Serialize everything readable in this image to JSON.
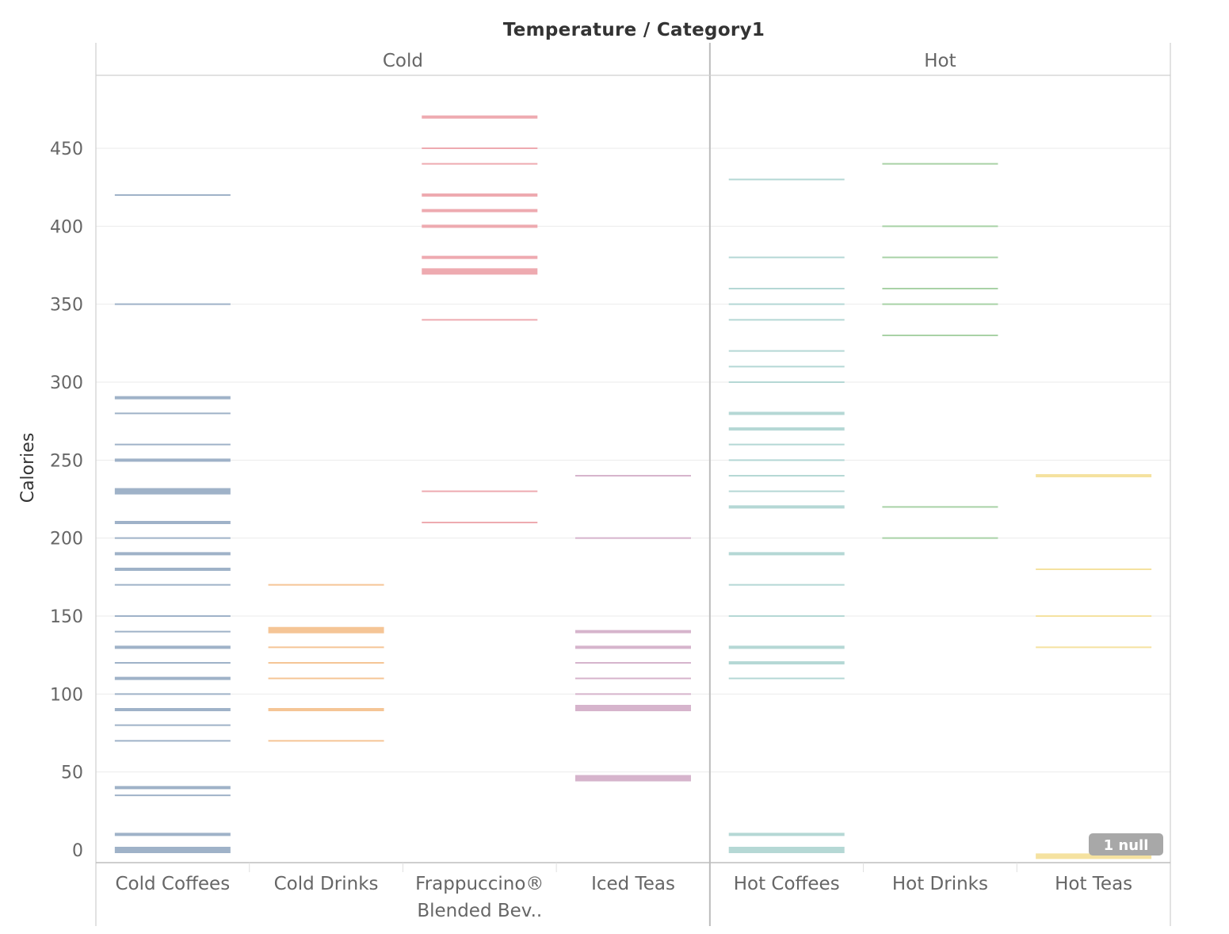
{
  "chart_data": {
    "type": "strip",
    "title": "Temperature / Category1",
    "ylabel": "Calories",
    "ylim": [
      -8,
      490
    ],
    "yticks": [
      0,
      50,
      100,
      150,
      200,
      250,
      300,
      350,
      400,
      450
    ],
    "grid": true,
    "groups": [
      {
        "name": "Cold",
        "categories": [
          "Cold Coffees",
          "Cold Drinks",
          "Frappuccino®|Blended Bev..",
          "Iced Teas"
        ]
      },
      {
        "name": "Hot",
        "categories": [
          "Hot Coffees",
          "Hot Drinks",
          "Hot Teas"
        ]
      }
    ],
    "series": [
      {
        "category": "Cold Coffees",
        "color": "#9fb2c8",
        "values": [
          [
            0,
            3
          ],
          [
            10,
            2
          ],
          [
            35,
            1
          ],
          [
            40,
            2
          ],
          [
            70,
            1
          ],
          [
            80,
            1
          ],
          [
            90,
            2
          ],
          [
            100,
            1
          ],
          [
            110,
            2
          ],
          [
            120,
            1
          ],
          [
            130,
            2
          ],
          [
            140,
            1
          ],
          [
            150,
            1
          ],
          [
            170,
            1
          ],
          [
            180,
            2
          ],
          [
            190,
            2
          ],
          [
            200,
            1
          ],
          [
            210,
            2
          ],
          [
            230,
            3
          ],
          [
            250,
            2
          ],
          [
            260,
            1
          ],
          [
            280,
            1
          ],
          [
            290,
            2
          ],
          [
            350,
            1
          ],
          [
            420,
            1
          ]
        ]
      },
      {
        "category": "Cold Drinks",
        "color": "#f5c596",
        "values": [
          [
            70,
            1
          ],
          [
            90,
            2
          ],
          [
            110,
            1
          ],
          [
            120,
            1
          ],
          [
            130,
            1
          ],
          [
            141,
            3
          ],
          [
            170,
            1
          ]
        ]
      },
      {
        "category": "Frappuccino®|Blended Bev..",
        "color": "#eeaab0",
        "values": [
          [
            210,
            1
          ],
          [
            230,
            1
          ],
          [
            340,
            1
          ],
          [
            371,
            3
          ],
          [
            380,
            2
          ],
          [
            400,
            2
          ],
          [
            410,
            2
          ],
          [
            420,
            2
          ],
          [
            440,
            1
          ],
          [
            450,
            1
          ],
          [
            470,
            2
          ]
        ]
      },
      {
        "category": "Iced Teas",
        "color": "#d6b4cc",
        "values": [
          [
            46,
            3
          ],
          [
            91,
            3
          ],
          [
            100,
            1
          ],
          [
            110,
            1
          ],
          [
            120,
            1
          ],
          [
            130,
            2
          ],
          [
            140,
            2
          ],
          [
            200,
            1
          ],
          [
            240,
            1
          ]
        ]
      },
      {
        "category": "Hot Coffees",
        "color": "#b5d8d5",
        "values": [
          [
            0,
            3
          ],
          [
            10,
            2
          ],
          [
            110,
            1
          ],
          [
            120,
            2
          ],
          [
            130,
            2
          ],
          [
            150,
            1
          ],
          [
            170,
            1
          ],
          [
            190,
            2
          ],
          [
            220,
            2
          ],
          [
            230,
            1
          ],
          [
            240,
            1
          ],
          [
            250,
            1
          ],
          [
            260,
            1
          ],
          [
            270,
            2
          ],
          [
            280,
            2
          ],
          [
            300,
            1
          ],
          [
            310,
            1
          ],
          [
            320,
            1
          ],
          [
            340,
            1
          ],
          [
            350,
            1
          ],
          [
            360,
            1
          ],
          [
            380,
            1
          ],
          [
            430,
            1
          ]
        ]
      },
      {
        "category": "Hot Drinks",
        "color": "#a9d2a6",
        "values": [
          [
            200,
            1
          ],
          [
            220,
            1
          ],
          [
            330,
            1
          ],
          [
            350,
            1
          ],
          [
            360,
            1
          ],
          [
            380,
            1
          ],
          [
            400,
            1
          ],
          [
            440,
            1
          ]
        ]
      },
      {
        "category": "Hot Teas",
        "color": "#f5e2a0",
        "values": [
          [
            -4,
            7
          ],
          [
            130,
            1
          ],
          [
            150,
            1
          ],
          [
            180,
            1
          ],
          [
            240,
            2
          ]
        ]
      }
    ],
    "null_indicator": {
      "text": "1 null",
      "color": "#a8a8a8"
    }
  }
}
